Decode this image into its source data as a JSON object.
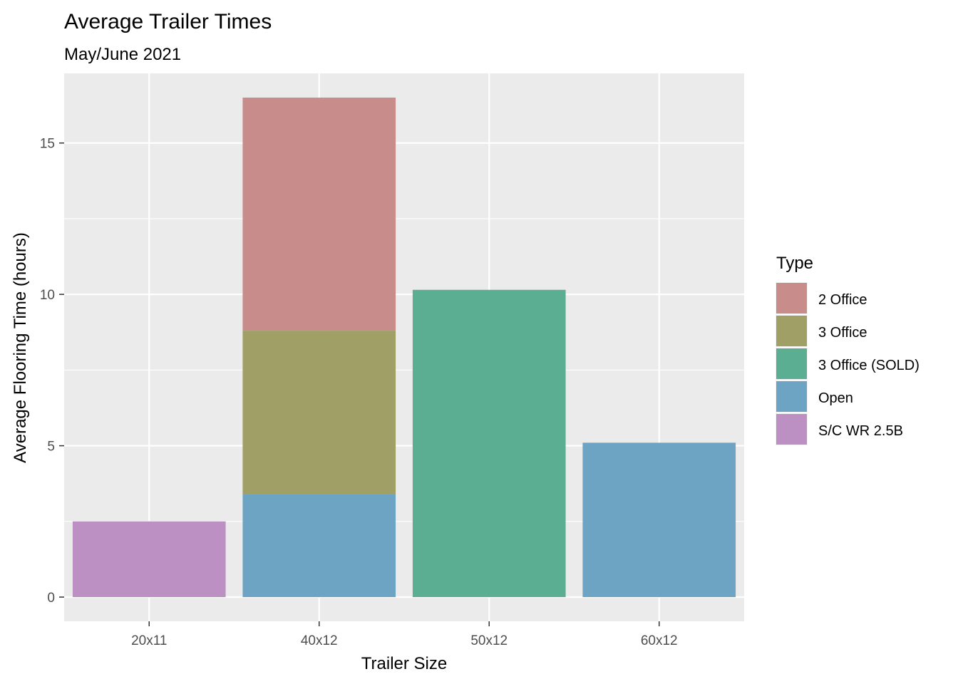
{
  "chart_data": {
    "type": "bar",
    "stacked": true,
    "title": "Average Trailer Times",
    "subtitle": "May/June 2021",
    "xlabel": "Trailer Size",
    "ylabel": "Average Flooring Time (hours)",
    "categories": [
      "20x11",
      "40x12",
      "50x12",
      "60x12"
    ],
    "ylim": [
      -0.8,
      17.3
    ],
    "yticks": [
      0,
      5,
      10,
      15
    ],
    "ytick_labels": [
      "0",
      "5",
      "10",
      "15"
    ],
    "grid": true,
    "legend": {
      "title": "Type",
      "position": "right"
    },
    "series": [
      {
        "name": "2 Office",
        "color": "#C88D8A",
        "values": [
          0,
          7.7,
          0,
          0
        ]
      },
      {
        "name": "3 Office",
        "color": "#A0A066",
        "values": [
          0,
          5.4,
          0,
          0
        ]
      },
      {
        "name": "3 Office (SOLD)",
        "color": "#5BAE91",
        "values": [
          0,
          0,
          10.15,
          0
        ]
      },
      {
        "name": "Open",
        "color": "#6EA4C3",
        "values": [
          0,
          3.4,
          0,
          5.1
        ]
      },
      {
        "name": "S/C WR 2.5B",
        "color": "#BD90C3",
        "values": [
          2.5,
          0,
          0,
          0
        ]
      }
    ],
    "stack_order_bottom_to_top": [
      "S/C WR 2.5B",
      "Open",
      "3 Office (SOLD)",
      "3 Office",
      "2 Office"
    ]
  }
}
